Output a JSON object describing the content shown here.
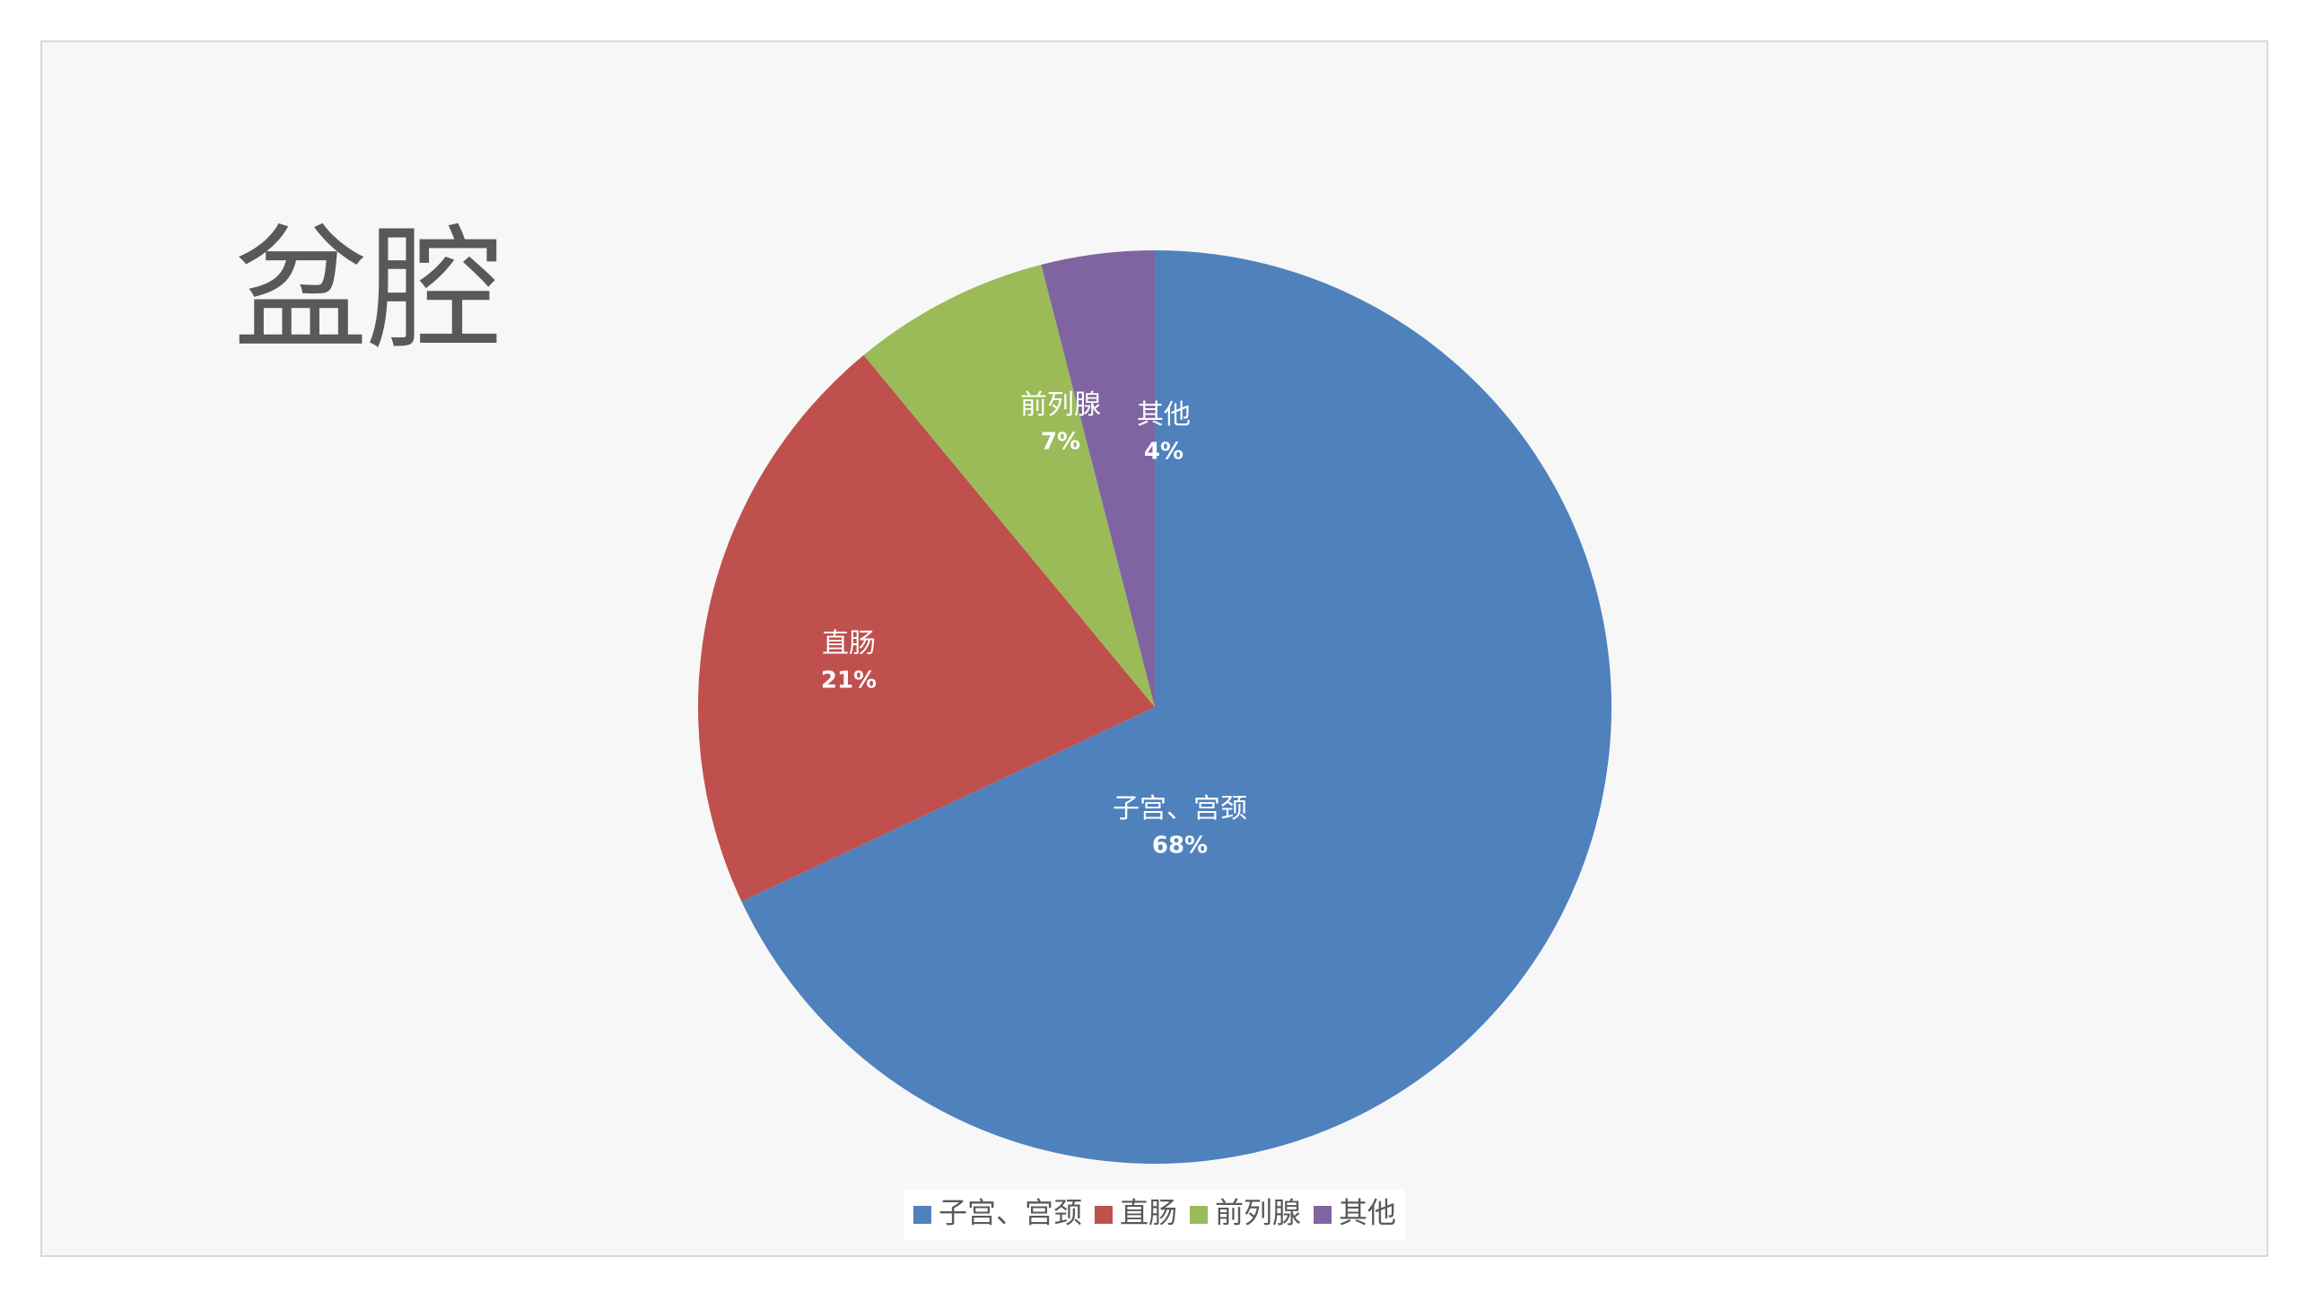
{
  "chart_data": {
    "type": "pie",
    "title": "盆腔",
    "categories": [
      "子宫、宫颈",
      "直肠",
      "前列腺",
      "其他"
    ],
    "values": [
      68,
      21,
      7,
      4
    ],
    "value_labels": [
      "68%",
      "21%",
      "7%",
      "4%"
    ],
    "colors": [
      "#4f81bd",
      "#c0504d",
      "#9bbb59",
      "#8064a2"
    ],
    "legend": "bottom"
  }
}
